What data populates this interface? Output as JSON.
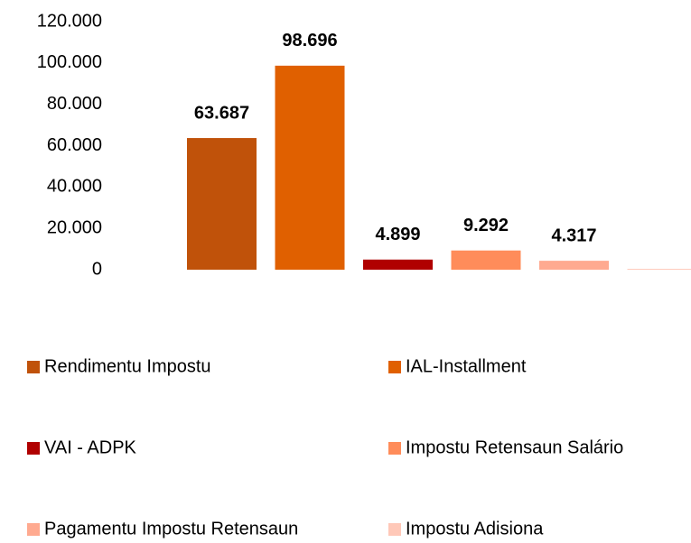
{
  "chart_data": {
    "type": "bar",
    "categories": [
      null
    ],
    "series": [
      {
        "name": "Rendimentu Impostu",
        "color": "#c0520a",
        "values": [
          63687
        ],
        "value_labels": [
          "63.687"
        ]
      },
      {
        "name": "IAL-Installment",
        "color": "#e06000",
        "values": [
          98696
        ],
        "value_labels": [
          "98.696"
        ]
      },
      {
        "name": "VAI - ADPK",
        "color": "#b00000",
        "values": [
          4899
        ],
        "value_labels": [
          "4.899"
        ]
      },
      {
        "name": "Impostu Retensaun Salário",
        "color": "#ff8c5a",
        "values": [
          9292
        ],
        "value_labels": [
          "9.292"
        ]
      },
      {
        "name": "Pagamentu Impostu Retensaun",
        "color": "#ffaa90",
        "values": [
          4317
        ],
        "value_labels": [
          "4.317"
        ]
      },
      {
        "name": "Impostu Adisiona",
        "color": "#ffc8b8",
        "values": [
          400
        ]
      }
    ],
    "ylim": [
      0,
      120000
    ],
    "yticks": [
      0,
      {
        "value": 20000,
        "label": "20.000"
      },
      {
        "value": 40000,
        "label": "40.000"
      },
      {
        "value": 60000,
        "label": "60.000"
      },
      {
        "value": 80000,
        "label": "80.000"
      },
      {
        "value": 100000,
        "label": "100.000"
      },
      {
        "value": 120000,
        "label": "120.000"
      }
    ],
    "grid": false,
    "legend": "bottom"
  }
}
